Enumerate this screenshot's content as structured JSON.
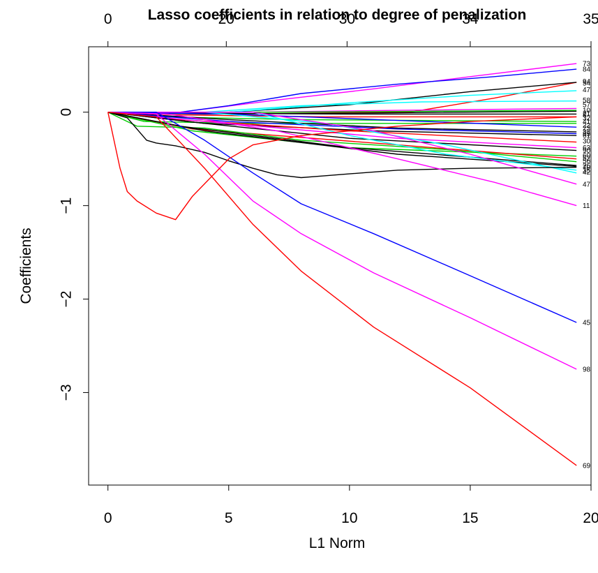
{
  "chart_data": {
    "type": "line",
    "title": "Lasso coefficients in relation to degree of penalization",
    "xlabel": "L1 Norm",
    "ylabel": "Coefficients",
    "xlim": [
      -0.8,
      20.0
    ],
    "ylim": [
      -3.99,
      0.7
    ],
    "x_ticks": [
      0,
      5,
      10,
      15,
      20
    ],
    "y_ticks": [
      0,
      -1,
      -2,
      -3
    ],
    "top_axis": {
      "ticks": [
        {
          "x": 0,
          "label": "0"
        },
        {
          "x": 4.9,
          "label": "20"
        },
        {
          "x": 9.9,
          "label": "30"
        },
        {
          "x": 15.0,
          "label": "34"
        },
        {
          "x": 20.0,
          "label": "35"
        }
      ]
    },
    "grid": false,
    "series": [
      {
        "name": "73",
        "color": "#FF00FF",
        "points": [
          [
            0,
            0
          ],
          [
            3,
            0
          ],
          [
            7,
            0.13
          ],
          [
            11,
            0.25
          ],
          [
            15,
            0.38
          ],
          [
            19.4,
            0.52
          ]
        ]
      },
      {
        "name": "84",
        "color": "#0000FF",
        "points": [
          [
            0,
            0
          ],
          [
            3,
            0
          ],
          [
            5,
            0.07
          ],
          [
            8,
            0.2
          ],
          [
            12,
            0.3
          ],
          [
            16,
            0.38
          ],
          [
            19.4,
            0.46
          ]
        ]
      },
      {
        "name": "94",
        "color": "#FF0000",
        "points": [
          [
            0,
            0
          ],
          [
            12.5,
            0
          ],
          [
            16,
            0.15
          ],
          [
            19.4,
            0.32
          ]
        ]
      },
      {
        "name": "54",
        "color": "#000000",
        "points": [
          [
            0,
            0
          ],
          [
            5,
            0
          ],
          [
            10,
            0.08
          ],
          [
            15,
            0.22
          ],
          [
            19.4,
            0.32
          ]
        ]
      },
      {
        "name": "47",
        "color": "#00FFFF",
        "points": [
          [
            0,
            0
          ],
          [
            5,
            0
          ],
          [
            10,
            0.1
          ],
          [
            15,
            0.18
          ],
          [
            19.4,
            0.23
          ]
        ]
      },
      {
        "name": "58",
        "color": "#00FFFF",
        "points": [
          [
            0,
            0
          ],
          [
            4,
            0
          ],
          [
            8,
            0.07
          ],
          [
            13,
            0.11
          ],
          [
            19.4,
            0.12
          ]
        ]
      },
      {
        "name": "57",
        "color": "#FF00FF",
        "points": [
          [
            0,
            0
          ],
          [
            6,
            0
          ],
          [
            12,
            0.02
          ],
          [
            19.4,
            0.04
          ]
        ]
      },
      {
        "name": "10",
        "color": "#00CD00",
        "points": [
          [
            0,
            0
          ],
          [
            7,
            0
          ],
          [
            19.4,
            0.02
          ]
        ]
      },
      {
        "name": "8",
        "color": "#000000",
        "points": [
          [
            0,
            0
          ],
          [
            3,
            -0.01
          ],
          [
            10,
            -0.02
          ],
          [
            19.4,
            -0.02
          ]
        ]
      },
      {
        "name": "21",
        "color": "#000000",
        "points": [
          [
            0,
            0
          ],
          [
            4,
            -0.02
          ],
          [
            10,
            -0.01
          ],
          [
            19.4,
            0.01
          ]
        ]
      },
      {
        "name": "32",
        "color": "#FF0000",
        "points": [
          [
            0,
            0
          ],
          [
            3,
            -0.03
          ],
          [
            9,
            -0.05
          ],
          [
            19.4,
            -0.05
          ]
        ]
      },
      {
        "name": "41",
        "color": "#00CD00",
        "points": [
          [
            0,
            0
          ],
          [
            2,
            -0.05
          ],
          [
            8,
            -0.08
          ],
          [
            19.4,
            -0.1
          ]
        ]
      },
      {
        "name": "22",
        "color": "#00CD00",
        "points": [
          [
            0,
            0
          ],
          [
            1.5,
            -0.1
          ],
          [
            6,
            -0.12
          ],
          [
            19.4,
            -0.12
          ]
        ]
      },
      {
        "name": "23",
        "color": "#0000FF",
        "points": [
          [
            0,
            0
          ],
          [
            5,
            -0.02
          ],
          [
            19.4,
            -0.16
          ]
        ]
      },
      {
        "name": "33",
        "color": "#000000",
        "points": [
          [
            0,
            0
          ],
          [
            5,
            -0.08
          ],
          [
            12,
            -0.17
          ],
          [
            19.4,
            -0.21
          ]
        ]
      },
      {
        "name": "85",
        "color": "#0000FF",
        "points": [
          [
            0,
            0
          ],
          [
            5,
            -0.1
          ],
          [
            12,
            -0.18
          ],
          [
            19.4,
            -0.23
          ]
        ]
      },
      {
        "name": "61",
        "color": "#000000",
        "points": [
          [
            0,
            0
          ],
          [
            4,
            -0.12
          ],
          [
            11,
            -0.2
          ],
          [
            19.4,
            -0.25
          ]
        ]
      },
      {
        "name": "30",
        "color": "#FF0000",
        "points": [
          [
            0,
            0
          ],
          [
            3,
            -0.08
          ],
          [
            10,
            -0.2
          ],
          [
            19.4,
            -0.32
          ]
        ]
      },
      {
        "name": "63",
        "color": "#FF00FF",
        "points": [
          [
            0,
            0
          ],
          [
            4,
            -0.1
          ],
          [
            12,
            -0.28
          ],
          [
            19.4,
            -0.38
          ]
        ]
      },
      {
        "name": "90",
        "color": "#000000",
        "points": [
          [
            0,
            0
          ],
          [
            4,
            -0.12
          ],
          [
            10,
            -0.28
          ],
          [
            19.4,
            -0.41
          ]
        ]
      },
      {
        "name": "60",
        "color": "#00CD00",
        "points": [
          [
            0,
            0
          ],
          [
            3.5,
            -0.2
          ],
          [
            10,
            -0.38
          ],
          [
            19.4,
            -0.47
          ]
        ]
      },
      {
        "name": "52",
        "color": "#FF0000",
        "points": [
          [
            0,
            0
          ],
          [
            3.5,
            -0.18
          ],
          [
            12,
            -0.35
          ],
          [
            19.4,
            -0.5
          ]
        ]
      },
      {
        "name": "56",
        "color": "#00CD00",
        "points": [
          [
            0,
            0
          ],
          [
            1.2,
            -0.15
          ],
          [
            4,
            -0.17
          ],
          [
            8,
            -0.3
          ],
          [
            14,
            -0.4
          ],
          [
            19.4,
            -0.53
          ]
        ]
      },
      {
        "name": "26",
        "color": "#000000",
        "points": [
          [
            0,
            0
          ],
          [
            3,
            -0.15
          ],
          [
            10,
            -0.38
          ],
          [
            19.4,
            -0.57
          ]
        ]
      },
      {
        "name": "70",
        "color": "#000000",
        "points": [
          [
            0,
            0
          ],
          [
            4,
            -0.2
          ],
          [
            12,
            -0.45
          ],
          [
            19.4,
            -0.58
          ]
        ]
      },
      {
        "name": "35",
        "color": "#00FFFF",
        "points": [
          [
            0,
            0
          ],
          [
            6,
            0
          ],
          [
            10,
            -0.25
          ],
          [
            14,
            -0.45
          ],
          [
            19.4,
            -0.62
          ]
        ]
      },
      {
        "name": "42",
        "color": "#00FFFF",
        "points": [
          [
            0,
            0
          ],
          [
            4,
            0
          ],
          [
            9,
            -0.12
          ],
          [
            14,
            -0.35
          ],
          [
            19.4,
            -0.65
          ]
        ]
      },
      {
        "name": "46",
        "color": "#000000",
        "points": [
          [
            0,
            0
          ],
          [
            0.8,
            -0.06
          ],
          [
            1.6,
            -0.3
          ],
          [
            2,
            -0.33
          ],
          [
            2.8,
            -0.36
          ],
          [
            4,
            -0.43
          ],
          [
            5,
            -0.52
          ],
          [
            6,
            -0.6
          ],
          [
            7,
            -0.67
          ],
          [
            8,
            -0.7
          ],
          [
            9,
            -0.68
          ],
          [
            10,
            -0.66
          ],
          [
            12,
            -0.62
          ],
          [
            15,
            -0.6
          ],
          [
            19.4,
            -0.59
          ]
        ]
      },
      {
        "name": "47b",
        "color": "#FF00FF",
        "points": [
          [
            0,
            0
          ],
          [
            6,
            0
          ],
          [
            11,
            -0.2
          ],
          [
            15,
            -0.45
          ],
          [
            19.4,
            -0.77
          ]
        ]
      },
      {
        "name": "11",
        "color": "#FF00FF",
        "points": [
          [
            0,
            0
          ],
          [
            2.5,
            -0.02
          ],
          [
            7,
            -0.2
          ],
          [
            12,
            -0.5
          ],
          [
            16,
            -0.75
          ],
          [
            19.4,
            -1.0
          ]
        ]
      },
      {
        "name": "45",
        "color": "#0000FF",
        "points": [
          [
            0,
            0
          ],
          [
            2,
            0
          ],
          [
            4,
            -0.3
          ],
          [
            6,
            -0.65
          ],
          [
            8,
            -0.98
          ],
          [
            11,
            -1.3
          ],
          [
            15,
            -1.75
          ],
          [
            19.4,
            -2.25
          ]
        ]
      },
      {
        "name": "98",
        "color": "#FF00FF",
        "points": [
          [
            0,
            0
          ],
          [
            2,
            -0.02
          ],
          [
            4,
            -0.45
          ],
          [
            6,
            -0.95
          ],
          [
            8,
            -1.3
          ],
          [
            11,
            -1.72
          ],
          [
            15,
            -2.2
          ],
          [
            19.4,
            -2.75
          ]
        ]
      },
      {
        "name": "69a",
        "color": "#FF0000",
        "points": [
          [
            0,
            0
          ],
          [
            0.5,
            -0.6
          ],
          [
            0.8,
            -0.85
          ],
          [
            1.2,
            -0.95
          ],
          [
            2,
            -1.08
          ],
          [
            2.8,
            -1.15
          ],
          [
            3.5,
            -0.9
          ],
          [
            5,
            -0.5
          ],
          [
            6,
            -0.35
          ],
          [
            8,
            -0.25
          ],
          [
            10,
            -0.2
          ],
          [
            12,
            -0.15
          ],
          [
            15,
            -0.1
          ],
          [
            19.4,
            -0.05
          ]
        ]
      },
      {
        "name": "69",
        "color": "#FF0000",
        "points": [
          [
            0,
            0
          ],
          [
            2,
            -0.05
          ],
          [
            4,
            -0.6
          ],
          [
            6,
            -1.2
          ],
          [
            8,
            -1.7
          ],
          [
            11,
            -2.3
          ],
          [
            15,
            -2.95
          ],
          [
            19.4,
            -3.78
          ]
        ]
      }
    ],
    "right_labels": [
      {
        "y": 0.52,
        "text": "73"
      },
      {
        "y": 0.46,
        "text": "84"
      },
      {
        "y": 0.33,
        "text": "94"
      },
      {
        "y": 0.31,
        "text": "54"
      },
      {
        "y": 0.24,
        "text": "47"
      },
      {
        "y": 0.13,
        "text": "58"
      },
      {
        "y": 0.08,
        "text": "57"
      },
      {
        "y": 0.02,
        "text": "10"
      },
      {
        "y": -0.01,
        "text": "21"
      },
      {
        "y": -0.03,
        "text": "8"
      },
      {
        "y": -0.06,
        "text": "32"
      },
      {
        "y": -0.1,
        "text": "41"
      },
      {
        "y": -0.14,
        "text": "22"
      },
      {
        "y": -0.17,
        "text": "23"
      },
      {
        "y": -0.21,
        "text": "33"
      },
      {
        "y": -0.23,
        "text": "85"
      },
      {
        "y": -0.25,
        "text": "61"
      },
      {
        "y": -0.31,
        "text": "30"
      },
      {
        "y": -0.38,
        "text": "63"
      },
      {
        "y": -0.41,
        "text": "90"
      },
      {
        "y": -0.46,
        "text": "60"
      },
      {
        "y": -0.49,
        "text": "52"
      },
      {
        "y": -0.52,
        "text": "56"
      },
      {
        "y": -0.57,
        "text": "26"
      },
      {
        "y": -0.59,
        "text": "70"
      },
      {
        "y": -0.62,
        "text": "35"
      },
      {
        "y": -0.64,
        "text": "42"
      },
      {
        "y": -0.77,
        "text": "47"
      },
      {
        "y": -1.0,
        "text": "11"
      },
      {
        "y": -2.25,
        "text": "45"
      },
      {
        "y": -2.75,
        "text": "98"
      },
      {
        "y": -3.78,
        "text": "69"
      }
    ]
  }
}
